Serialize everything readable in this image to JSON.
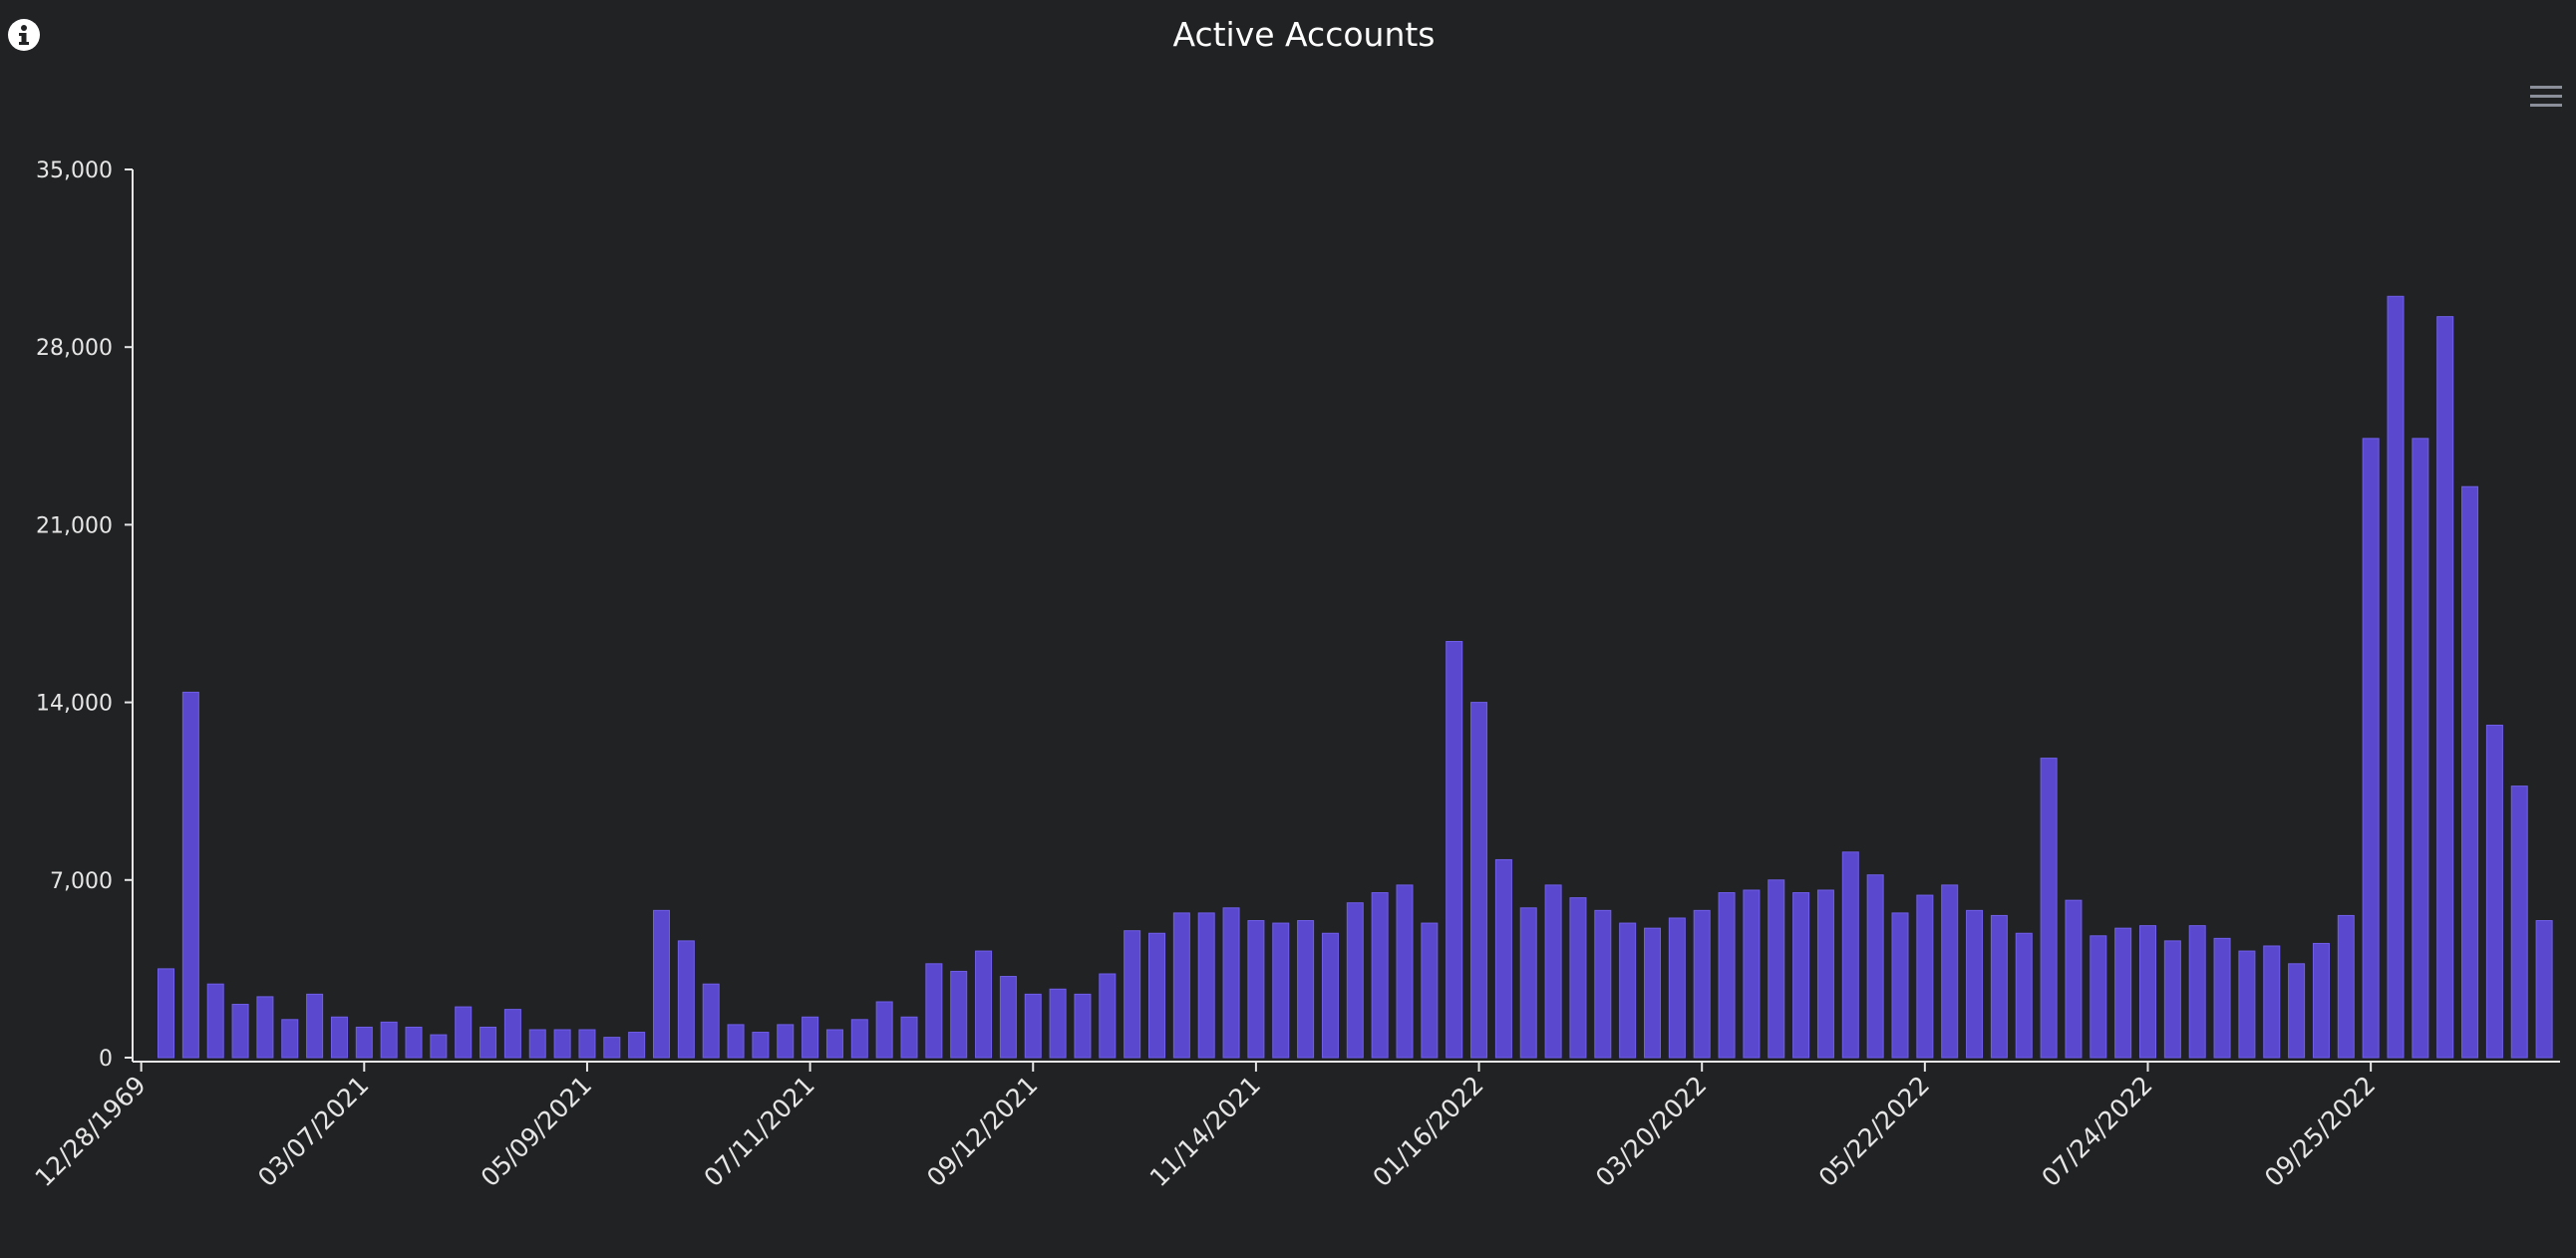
{
  "chart_data": {
    "type": "bar",
    "title": "Active Accounts",
    "xlabel": "",
    "ylabel": "",
    "ylim": [
      0,
      35000
    ],
    "grid": false,
    "legend": "none",
    "bar_color": "#5a48cf",
    "background_color": "#212224",
    "yticks": [
      0,
      7000,
      14000,
      21000,
      28000,
      35000
    ],
    "ytick_labels": [
      "0",
      "7,000",
      "14,000",
      "21,000",
      "28,000",
      "35,000"
    ],
    "xtick_labels": [
      "12/28/1969",
      "03/07/2021",
      "05/09/2021",
      "07/11/2021",
      "09/12/2021",
      "11/14/2021",
      "01/16/2022",
      "03/20/2022",
      "05/22/2022",
      "07/24/2022",
      "09/25/2022"
    ],
    "xtick_bar_index": [
      -1,
      8,
      17,
      26,
      35,
      44,
      53,
      62,
      71,
      80,
      89
    ],
    "values": [
      3500,
      14400,
      2900,
      2100,
      2400,
      1500,
      2500,
      1600,
      1200,
      1400,
      1200,
      900,
      2000,
      1200,
      1900,
      1100,
      1100,
      1100,
      800,
      1000,
      5800,
      4600,
      2900,
      1300,
      1000,
      1300,
      1600,
      1100,
      1500,
      2200,
      1600,
      3700,
      3400,
      4200,
      3200,
      2500,
      2700,
      2500,
      3300,
      5000,
      4900,
      5700,
      5700,
      5900,
      5400,
      5300,
      5400,
      4900,
      6100,
      6500,
      6800,
      5300,
      16400,
      14000,
      7800,
      5900,
      6800,
      6300,
      5800,
      5300,
      5100,
      5500,
      5800,
      6500,
      6600,
      7000,
      6500,
      6600,
      8100,
      7200,
      5700,
      6400,
      6800,
      5800,
      5600,
      4900,
      11800,
      6200,
      4800,
      5100,
      5200,
      4600,
      5200,
      4700,
      4200,
      4400,
      3700,
      4500,
      5600,
      24400,
      30000,
      24400,
      29200,
      22500,
      13100,
      10700,
      5400
    ]
  },
  "ui": {
    "info_icon": "info-icon",
    "menu_icon": "hamburger-menu-icon",
    "menu_icon_color": "#8a8f99"
  }
}
